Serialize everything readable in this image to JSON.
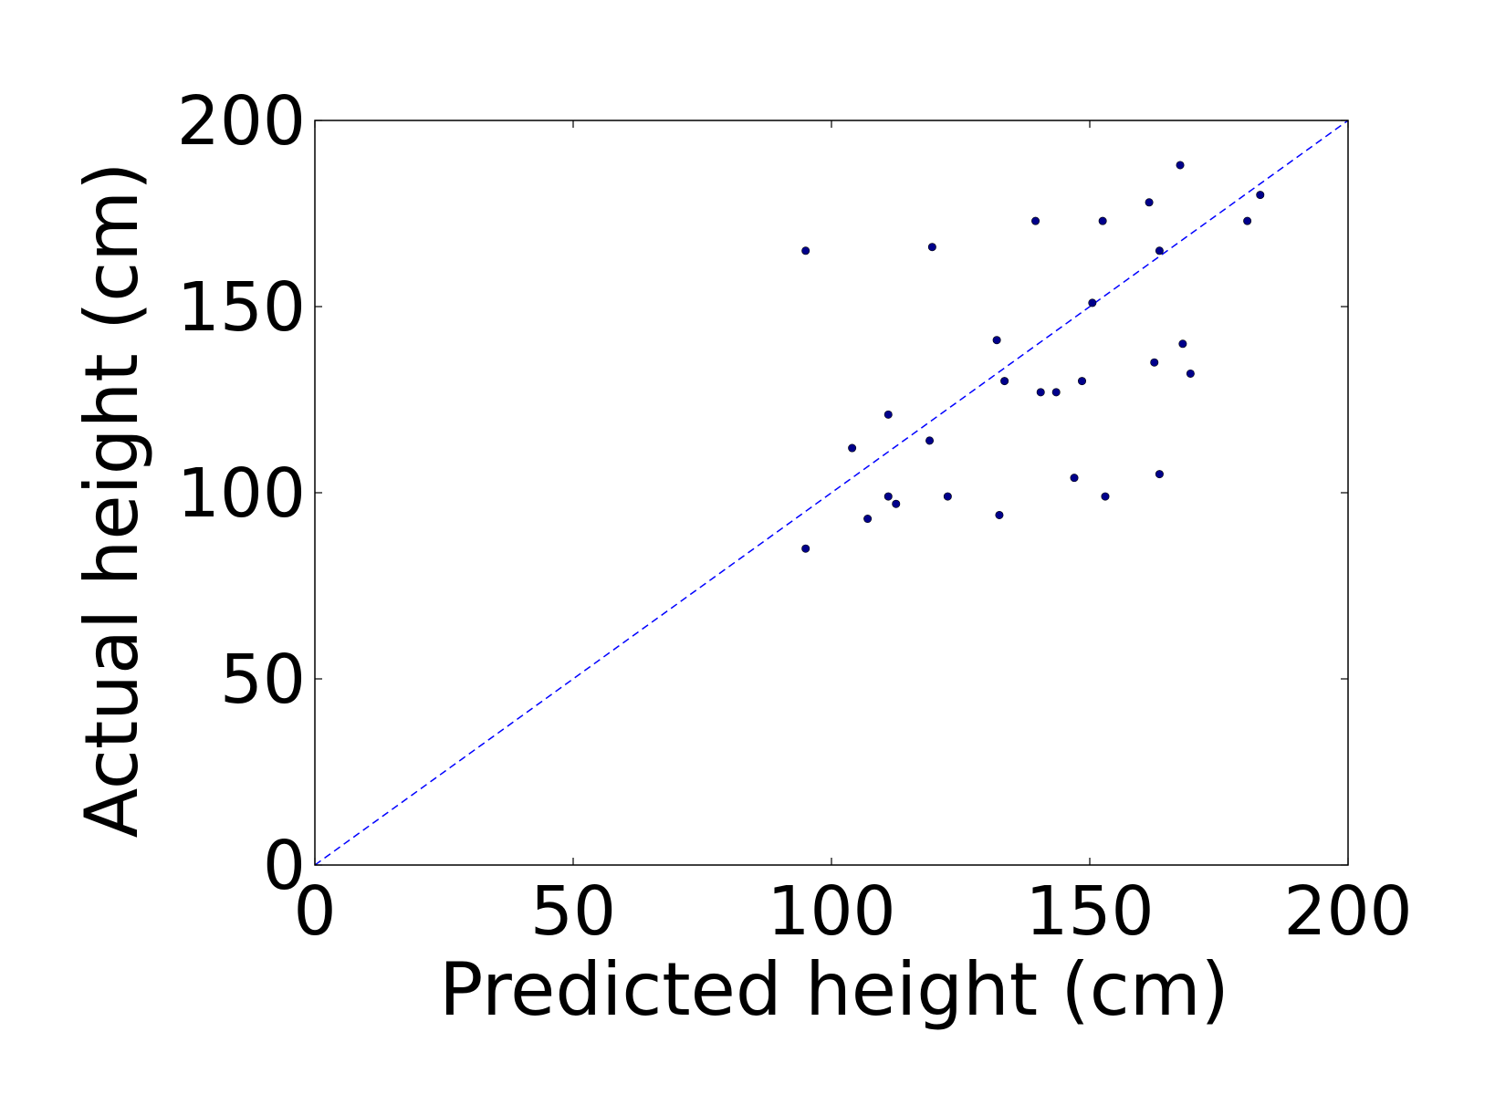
{
  "chart_data": {
    "type": "scatter",
    "title": "",
    "xlabel": "Predicted height (cm)",
    "ylabel": "Actual height (cm)",
    "xlim": [
      0,
      200
    ],
    "ylim": [
      0,
      200
    ],
    "xticks": [
      "0",
      "50",
      "100",
      "150",
      "200"
    ],
    "yticks": [
      "0",
      "50",
      "100",
      "150",
      "200"
    ],
    "grid": false,
    "legend": "none",
    "colors": {
      "points": "#00008b",
      "reference_line": "#0000ff",
      "axes": "#000000"
    },
    "reference_line": {
      "style": "dashed",
      "x": [
        0,
        200
      ],
      "y": [
        0,
        200
      ]
    },
    "series": [
      {
        "x": [
          95,
          95,
          104,
          107,
          111,
          111,
          112.5,
          119,
          119.5,
          122.5,
          132,
          132.5,
          133.5,
          139.5,
          140.5,
          143.5,
          147,
          148.5,
          150.5,
          152.5,
          153,
          161.5,
          162.5,
          163.5,
          163.5,
          167.5,
          168,
          169.5,
          180.5,
          183
        ],
        "y": [
          85,
          165,
          112,
          93,
          121,
          99,
          97,
          114,
          166,
          99,
          141,
          94,
          130,
          173,
          127,
          127,
          104,
          130,
          151,
          173,
          99,
          178,
          135,
          165,
          105,
          188,
          140,
          132,
          173,
          180
        ]
      }
    ]
  }
}
